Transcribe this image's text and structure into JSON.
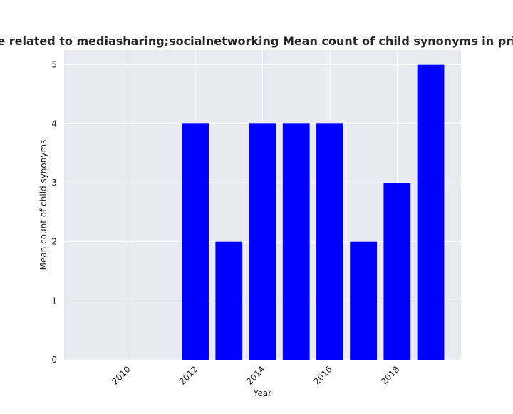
{
  "chart_data": {
    "type": "bar",
    "title": "ories are related to mediasharing;socialnetworking Mean count of child synonyms in privacy po",
    "xlabel": "Year",
    "ylabel": "Mean count of child synonyms",
    "x": [
      2012,
      2013,
      2014,
      2015,
      2016,
      2017,
      2018,
      2019
    ],
    "values": [
      4,
      2,
      4,
      4,
      4,
      2,
      3,
      5
    ],
    "xlim": [
      2008.1,
      2019.9
    ],
    "ylim": [
      0,
      5.25
    ],
    "xticks": [
      2010,
      2012,
      2014,
      2016,
      2018
    ],
    "yticks": [
      0,
      1,
      2,
      3,
      4,
      5
    ],
    "bar_color": "#0000ff",
    "plot_background": "#eaeaf2",
    "grid": true,
    "grid_color": "#ffffff"
  }
}
